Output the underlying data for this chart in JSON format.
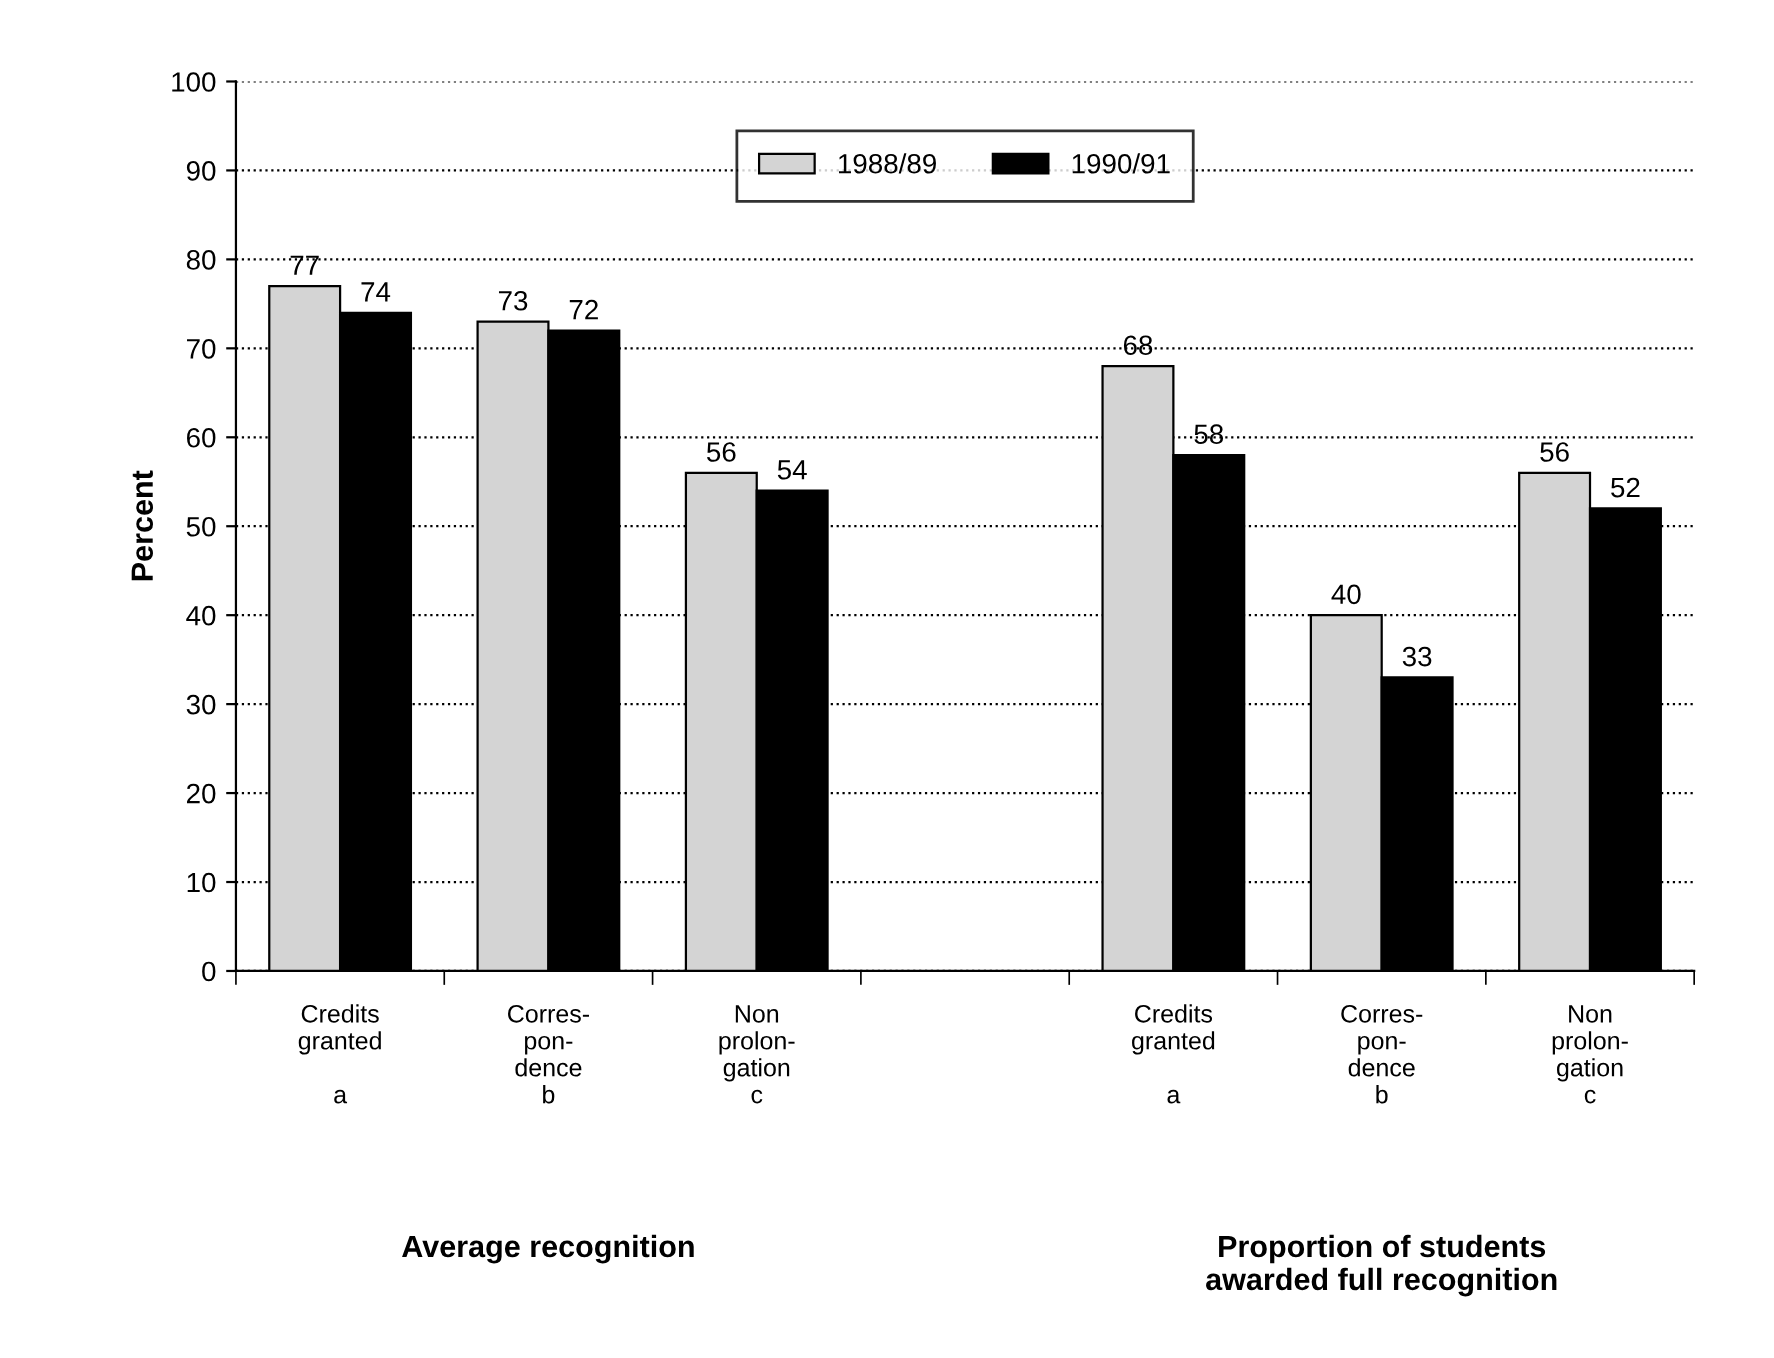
{
  "chart_data": {
    "type": "bar",
    "ylabel": "Percent",
    "categories": [
      "Credits\ngranted\n\na",
      "Corres-\npon-\ndence\nb",
      "Non\nprolon-\ngation\nc",
      null,
      "Credits\ngranted\n\na",
      "Corres-\npon-\ndence\nb",
      "Non\nprolon-\ngation\nc"
    ],
    "series": [
      {
        "name": "1988/89",
        "color": "#d4d4d4",
        "values": [
          77,
          73,
          56,
          null,
          68,
          40,
          56
        ]
      },
      {
        "name": "1990/91",
        "color": "#000000",
        "values": [
          74,
          72,
          54,
          null,
          58,
          33,
          52
        ]
      }
    ],
    "annotations": [
      "Average recognition",
      "Proportion of students\nawarded full recognition"
    ],
    "ylim": [
      0,
      100
    ],
    "yticks": [
      0,
      10,
      20,
      30,
      40,
      50,
      60,
      70,
      80,
      90,
      100
    ],
    "grid": "y",
    "legend": "top",
    "data_labels": true
  }
}
